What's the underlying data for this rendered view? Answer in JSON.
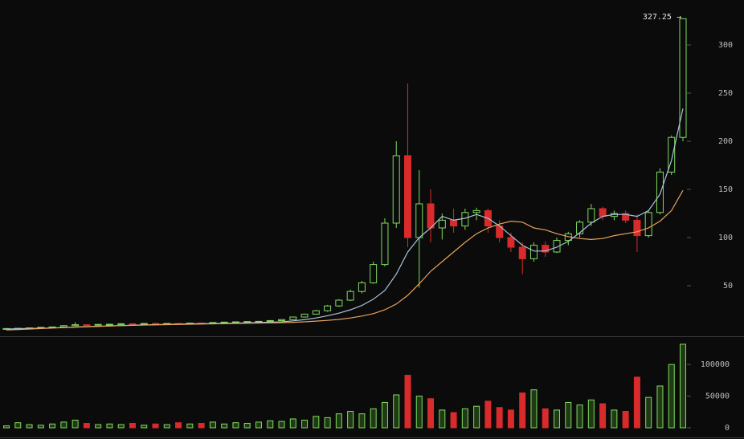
{
  "chart_data": {
    "type": "candlestick",
    "last_label": "327.25 →",
    "up_color": "#7fdc5f",
    "down_color": "#d92b2b",
    "ylim": [
      0,
      345
    ],
    "yticks": [
      50,
      100,
      150,
      200,
      250,
      300
    ],
    "volume_ylim": [
      0,
      137000
    ],
    "volume_yticks": [
      0,
      50000,
      100000
    ],
    "open": [
      5,
      5.5,
      5.8,
      6.2,
      6.8,
      7.2,
      8.5,
      9.5,
      9,
      9.8,
      10,
      10.5,
      10.2,
      10.8,
      10.5,
      10.8,
      10.6,
      11.2,
      11,
      11.8,
      12.2,
      12.5,
      12.8,
      13,
      13.8,
      14.8,
      17.5,
      20.5,
      24,
      29,
      35,
      44,
      53,
      72,
      115,
      185,
      100,
      135,
      110,
      118,
      112,
      126,
      128,
      112,
      100,
      90,
      78,
      92,
      85,
      97,
      104,
      116,
      130,
      122,
      125,
      118,
      102,
      126,
      168,
      204
    ],
    "high": [
      6,
      6,
      6.5,
      7,
      7.5,
      9,
      12,
      10,
      10,
      10.5,
      11,
      11,
      11,
      11.5,
      11,
      11.2,
      11.5,
      11.5,
      12,
      12.5,
      12.8,
      13,
      13.5,
      14,
      15,
      18,
      21,
      25,
      30,
      36,
      46,
      55,
      75,
      120,
      200,
      260,
      170,
      150,
      125,
      130,
      130,
      131,
      130,
      118,
      105,
      95,
      95,
      96,
      100,
      106,
      118,
      135,
      132,
      128,
      128,
      124,
      128,
      172,
      206,
      327.25
    ],
    "low": [
      4,
      5,
      5.5,
      6,
      6.5,
      7,
      8,
      8.5,
      8.5,
      9,
      9.5,
      9.8,
      10,
      10,
      10,
      10.2,
      10.5,
      10.8,
      10.8,
      11.5,
      11.8,
      12,
      12.5,
      12.8,
      13.5,
      14.5,
      17,
      20,
      23,
      28,
      34,
      42,
      52,
      70,
      110,
      90,
      48,
      95,
      98,
      105,
      108,
      118,
      105,
      95,
      85,
      62,
      75,
      80,
      84,
      92,
      100,
      112,
      118,
      118,
      115,
      85,
      100,
      124,
      165,
      200
    ],
    "close": [
      5.5,
      5.8,
      6.2,
      6.8,
      7.2,
      8.5,
      9.5,
      9,
      9.8,
      10,
      10.5,
      10.2,
      10.8,
      10.5,
      10.8,
      10.6,
      11.2,
      11,
      11.8,
      12.2,
      12.5,
      12.8,
      13,
      13.8,
      14.8,
      17.5,
      20.5,
      24,
      29,
      35,
      44,
      53,
      72,
      115,
      185,
      100,
      135,
      110,
      118,
      112,
      126,
      128,
      112,
      100,
      90,
      78,
      92,
      85,
      97,
      104,
      116,
      130,
      122,
      125,
      118,
      102,
      126,
      168,
      204,
      327.25
    ],
    "volume": [
      3000,
      8000,
      5000,
      4000,
      6000,
      9000,
      12000,
      7000,
      5000,
      6000,
      5000,
      7000,
      4000,
      6000,
      5000,
      8000,
      6000,
      7000,
      9000,
      6000,
      8000,
      7000,
      9000,
      11000,
      10000,
      14000,
      12000,
      18000,
      16000,
      22000,
      26000,
      22000,
      30000,
      40000,
      52000,
      83000,
      50000,
      46000,
      28000,
      24000,
      30000,
      34000,
      42000,
      32000,
      28000,
      55000,
      60000,
      30000,
      28000,
      40000,
      36000,
      44000,
      38000,
      28000,
      26000,
      80000,
      48000,
      66000,
      100000,
      132000
    ],
    "series": [
      {
        "color": "#a9c4dc",
        "values": [
          5,
          5.3,
          5.6,
          5.9,
          6.2,
          6.6,
          7.1,
          7.5,
          7.8,
          8.2,
          8.6,
          9,
          9.3,
          9.6,
          9.9,
          10.1,
          10.4,
          10.6,
          10.8,
          11,
          11.2,
          11.5,
          11.8,
          12.1,
          12.5,
          13.5,
          14.8,
          16.5,
          18.8,
          21.5,
          25,
          29.5,
          36,
          45,
          62,
          85,
          100,
          110,
          122,
          118,
          120,
          124,
          120,
          112,
          102,
          92,
          86,
          86,
          90,
          96,
          105,
          115,
          122,
          124,
          124,
          122,
          128,
          145,
          180,
          234
        ]
      },
      {
        "color": "#e8a35c",
        "values": [
          4,
          4.5,
          5,
          5.5,
          6,
          6.5,
          7,
          7.4,
          7.8,
          8.2,
          8.5,
          8.8,
          9.1,
          9.4,
          9.6,
          9.8,
          10,
          10.2,
          10.4,
          10.6,
          10.8,
          11,
          11.2,
          11.4,
          11.6,
          12,
          12.5,
          13.2,
          14,
          15,
          16.5,
          18.5,
          21,
          25,
          31,
          40,
          52,
          65,
          75,
          85,
          95,
          104,
          110,
          114,
          117,
          116,
          110,
          108,
          104,
          101,
          99,
          98,
          99,
          102,
          104,
          106,
          110,
          117,
          128,
          149
        ]
      }
    ]
  }
}
